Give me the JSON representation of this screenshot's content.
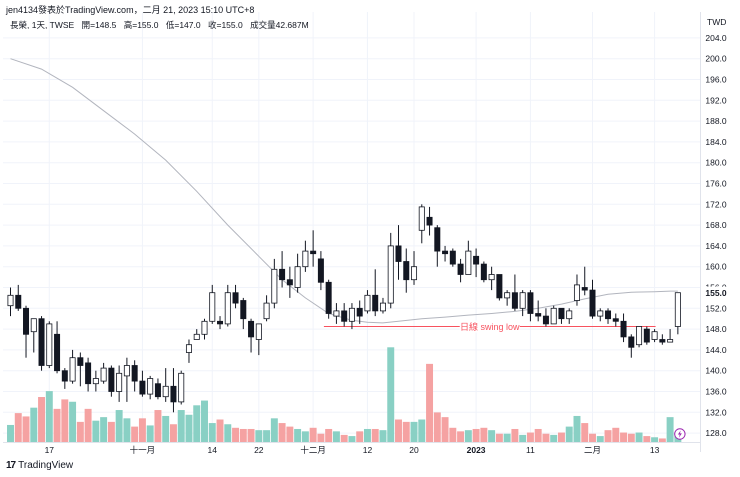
{
  "header": {
    "publish_line": "jen4134發表於TradingView.com，二月 21, 2023 15:10 UTC+8",
    "symbol_line": "長榮, 1天, TWSE",
    "open": "開=148.5",
    "high": "高=155.0",
    "low": "低=147.0",
    "close": "收=155.0",
    "volume": "成交量42.687M"
  },
  "price_axis": {
    "currency": "TWD",
    "ticks": [
      "204.0",
      "200.0",
      "196.0",
      "192.0",
      "188.0",
      "184.0",
      "180.0",
      "176.0",
      "172.0",
      "168.0",
      "164.0",
      "160.0",
      "156.0",
      "152.0",
      "148.0",
      "144.0",
      "140.0",
      "136.0",
      "132.0",
      "128.0"
    ],
    "last_price_label": "155.0"
  },
  "time_axis": {
    "labels": [
      {
        "text": "17",
        "bar": 5
      },
      {
        "text": "十一月",
        "bar": 17
      },
      {
        "text": "14",
        "bar": 26
      },
      {
        "text": "22",
        "bar": 32
      },
      {
        "text": "十二月",
        "bar": 39
      },
      {
        "text": "12",
        "bar": 46
      },
      {
        "text": "20",
        "bar": 52
      },
      {
        "text": "2023",
        "bar": 60
      },
      {
        "text": "11",
        "bar": 67
      },
      {
        "text": "二月",
        "bar": 75
      },
      {
        "text": "13",
        "bar": 83
      }
    ]
  },
  "annotation": {
    "text": "日線 swing low",
    "price": 148.5,
    "from_bar": 40,
    "to_bar": 83,
    "color": "#f7525f"
  },
  "branding": {
    "logo": "17",
    "name": "TradingView"
  },
  "colors": {
    "up_body": "#ffffff",
    "down_body": "#131722",
    "candle_border": "#131722",
    "vol_up": "#89d0c4",
    "vol_down": "#f5a2a2",
    "ma_line": "#b2b5be",
    "grid": "#f0f3fa"
  },
  "chart_data": {
    "type": "candlestick",
    "symbol": "長榮",
    "interval": "1天",
    "exchange": "TWSE",
    "y_range": [
      126,
      206
    ],
    "volume_baseline_price": 126,
    "volume_top_price": 144.5,
    "candles": [
      [
        152.5,
        156.0,
        150.5,
        154.5
      ],
      [
        154.5,
        156.5,
        151.5,
        152.0
      ],
      [
        152.0,
        152.5,
        142.5,
        147.0
      ],
      [
        147.5,
        150.0,
        143.5,
        150.0
      ],
      [
        150.0,
        150.5,
        140.0,
        141.0
      ],
      [
        141.0,
        149.5,
        140.5,
        149.0
      ],
      [
        147.0,
        149.5,
        139.5,
        140.0
      ],
      [
        140.0,
        140.5,
        136.5,
        138.0
      ],
      [
        138.0,
        144.0,
        137.5,
        142.5
      ],
      [
        142.5,
        143.5,
        137.0,
        141.0
      ],
      [
        141.5,
        142.5,
        136.0,
        137.5
      ],
      [
        137.5,
        140.0,
        136.0,
        138.5
      ],
      [
        138.0,
        141.5,
        137.5,
        140.5
      ],
      [
        140.5,
        141.0,
        135.0,
        136.0
      ],
      [
        136.0,
        141.0,
        134.0,
        139.5
      ],
      [
        139.0,
        142.5,
        134.0,
        141.0
      ],
      [
        141.0,
        142.0,
        136.0,
        138.0
      ],
      [
        138.0,
        140.0,
        135.0,
        135.5
      ],
      [
        135.5,
        139.0,
        134.5,
        138.5
      ],
      [
        137.5,
        138.5,
        134.5,
        135.0
      ],
      [
        135.0,
        140.5,
        134.0,
        137.0
      ],
      [
        137.0,
        140.5,
        132.0,
        134.0
      ],
      [
        134.0,
        140.0,
        133.5,
        139.5
      ],
      [
        143.5,
        146.0,
        141.5,
        145.0
      ],
      [
        146.0,
        148.0,
        146.0,
        147.0
      ],
      [
        147.0,
        150.0,
        146.0,
        149.5
      ],
      [
        149.5,
        156.5,
        149.0,
        155.0
      ],
      [
        149.5,
        150.5,
        148.0,
        149.0
      ],
      [
        149.0,
        156.5,
        148.5,
        155.0
      ],
      [
        155.0,
        156.5,
        152.0,
        153.0
      ],
      [
        153.5,
        154.0,
        148.0,
        150.0
      ],
      [
        149.5,
        150.0,
        143.5,
        146.5
      ],
      [
        146.0,
        149.0,
        143.0,
        149.0
      ],
      [
        150.0,
        154.5,
        149.5,
        153.0
      ],
      [
        153.0,
        161.5,
        152.0,
        159.5
      ],
      [
        159.5,
        163.0,
        156.0,
        157.5
      ],
      [
        157.5,
        160.0,
        154.0,
        156.5
      ],
      [
        156.0,
        162.5,
        155.0,
        160.0
      ],
      [
        160.0,
        165.0,
        159.0,
        163.0
      ],
      [
        163.0,
        167.0,
        160.0,
        162.5
      ],
      [
        161.5,
        163.0,
        155.5,
        157.0
      ],
      [
        157.0,
        157.5,
        150.0,
        151.0
      ],
      [
        150.5,
        153.0,
        149.0,
        151.5
      ],
      [
        151.5,
        153.0,
        148.5,
        149.5
      ],
      [
        149.5,
        153.0,
        148.0,
        152.0
      ],
      [
        152.0,
        153.5,
        149.0,
        150.5
      ],
      [
        151.5,
        155.5,
        151.0,
        154.5
      ],
      [
        154.5,
        159.5,
        150.5,
        151.5
      ],
      [
        151.5,
        154.0,
        151.0,
        153.0
      ],
      [
        153.0,
        166.5,
        152.0,
        164.0
      ],
      [
        164.0,
        168.0,
        157.5,
        161.0
      ],
      [
        161.0,
        163.5,
        155.0,
        157.5
      ],
      [
        157.5,
        163.0,
        156.5,
        160.0
      ],
      [
        167.0,
        172.0,
        164.5,
        171.5
      ],
      [
        169.5,
        171.5,
        166.0,
        168.0
      ],
      [
        167.5,
        168.0,
        160.0,
        163.0
      ],
      [
        163.0,
        164.0,
        161.0,
        162.5
      ],
      [
        163.0,
        163.5,
        160.0,
        160.5
      ],
      [
        160.5,
        161.5,
        157.0,
        158.5
      ],
      [
        158.5,
        165.0,
        158.5,
        163.0
      ],
      [
        162.0,
        163.5,
        158.0,
        160.5
      ],
      [
        160.5,
        161.0,
        157.0,
        157.5
      ],
      [
        157.5,
        160.0,
        155.5,
        158.5
      ],
      [
        158.5,
        158.5,
        153.5,
        154.0
      ],
      [
        154.0,
        155.5,
        152.5,
        155.0
      ],
      [
        155.0,
        158.5,
        151.5,
        152.0
      ],
      [
        152.0,
        155.5,
        150.5,
        155.0
      ],
      [
        155.0,
        155.5,
        149.5,
        151.0
      ],
      [
        151.0,
        153.5,
        149.5,
        150.5
      ],
      [
        150.5,
        152.0,
        148.5,
        149.0
      ],
      [
        149.0,
        152.5,
        149.0,
        152.0
      ],
      [
        152.0,
        152.0,
        149.0,
        150.0
      ],
      [
        150.0,
        152.0,
        149.0,
        151.5
      ],
      [
        153.5,
        158.5,
        152.5,
        156.5
      ],
      [
        156.0,
        160.0,
        154.5,
        155.5
      ],
      [
        155.5,
        157.5,
        150.0,
        150.5
      ],
      [
        150.5,
        152.0,
        149.5,
        151.5
      ],
      [
        151.5,
        152.0,
        149.0,
        150.0
      ],
      [
        150.0,
        151.0,
        148.5,
        149.5
      ],
      [
        149.5,
        151.0,
        145.5,
        146.5
      ],
      [
        146.5,
        147.0,
        142.5,
        144.5
      ],
      [
        145.0,
        148.5,
        144.5,
        148.5
      ],
      [
        148.0,
        148.5,
        145.0,
        145.5
      ],
      [
        146.0,
        148.0,
        145.5,
        147.5
      ],
      [
        146.0,
        147.0,
        145.0,
        145.5
      ],
      [
        145.5,
        148.0,
        145.5,
        146.0
      ],
      [
        148.5,
        155.0,
        147.0,
        155.0
      ]
    ],
    "volumes": [
      7.2,
      12.2,
      10.8,
      14.5,
      19.0,
      21.5,
      14.0,
      18.0,
      17.0,
      8.5,
      14.0,
      9.0,
      10.5,
      8.5,
      13.5,
      10.0,
      6.5,
      10.0,
      7.0,
      13.5,
      11.0,
      7.5,
      13.5,
      11.5,
      15.5,
      17.5,
      8.0,
      9.5,
      7.5,
      6.0,
      5.5,
      5.5,
      5.0,
      5.0,
      10.0,
      8.0,
      6.5,
      5.5,
      4.5,
      6.0,
      3.5,
      5.5,
      4.5,
      3.0,
      2.5,
      4.5,
      5.5,
      5.5,
      5.0,
      40.0,
      9.5,
      8.5,
      8.5,
      9.5,
      33.0,
      12.5,
      10.5,
      6.0,
      4.5,
      5.0,
      5.5,
      6.0,
      5.0,
      3.5,
      3.5,
      5.5,
      3.0,
      4.0,
      5.5,
      3.5,
      3.0,
      4.0,
      6.5,
      11.0,
      8.0,
      3.5,
      2.5,
      5.0,
      6.0,
      4.0,
      3.5,
      4.0,
      2.5,
      2.0,
      1.5,
      10.5,
      2.5
    ],
    "moving_average": [
      [
        0,
        200.0
      ],
      [
        4,
        198.0
      ],
      [
        8,
        194.5
      ],
      [
        12,
        190.0
      ],
      [
        16,
        185.5
      ],
      [
        20,
        180.5
      ],
      [
        24,
        174.5
      ],
      [
        28,
        168.0
      ],
      [
        32,
        162.0
      ],
      [
        35,
        157.5
      ],
      [
        38,
        154.0
      ],
      [
        41,
        151.0
      ],
      [
        44,
        149.7
      ],
      [
        46,
        149.3
      ],
      [
        48,
        149.2
      ],
      [
        50,
        149.5
      ],
      [
        53,
        150.0
      ],
      [
        56,
        150.3
      ],
      [
        59,
        150.7
      ],
      [
        62,
        151.0
      ],
      [
        65,
        151.4
      ],
      [
        68,
        152.0
      ],
      [
        71,
        152.8
      ],
      [
        74,
        153.8
      ],
      [
        77,
        154.7
      ],
      [
        80,
        155.1
      ],
      [
        83,
        155.2
      ],
      [
        85,
        155.3
      ],
      [
        86,
        155.3
      ]
    ],
    "yaxis_label": "TWD",
    "xlabel": "",
    "ylabel": ""
  }
}
